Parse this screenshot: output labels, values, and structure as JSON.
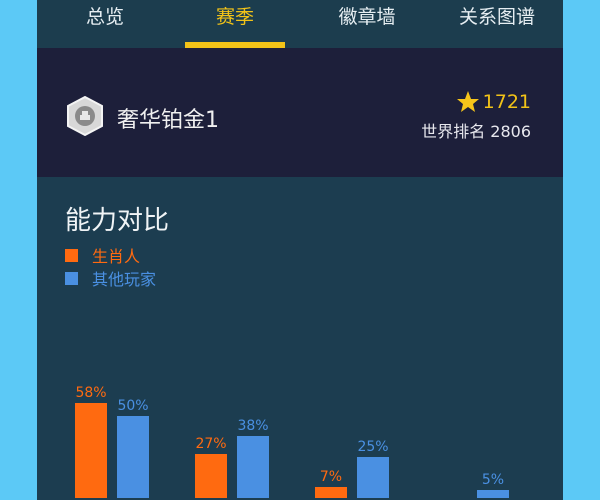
{
  "tabs": [
    {
      "label": "总览"
    },
    {
      "label": "赛季",
      "active": true
    },
    {
      "label": "徽章墙"
    },
    {
      "label": "关系图谱"
    }
  ],
  "header": {
    "rank_icon": "silver-hexagon-badge-icon",
    "rank_name": "奢华铂金1",
    "star_icon": "star-icon",
    "score": "1721",
    "world_rank": "世界排名 2806"
  },
  "colors": {
    "accent": "#f2c318",
    "series_self": "#ff6a10",
    "series_others": "#4a90e2"
  },
  "chart_data": {
    "type": "bar",
    "title": "能力对比",
    "legend_position": "top-left",
    "series": [
      {
        "name": "生肖人",
        "color": "#ff6a10",
        "values": [
          58,
          27,
          7,
          null
        ],
        "labels": [
          "58%",
          "27%",
          "7%",
          ""
        ]
      },
      {
        "name": "其他玩家",
        "color": "#4a90e2",
        "values": [
          50,
          38,
          25,
          5
        ],
        "labels": [
          "50%",
          "38%",
          "25%",
          "5%"
        ]
      }
    ],
    "grid": false
  }
}
